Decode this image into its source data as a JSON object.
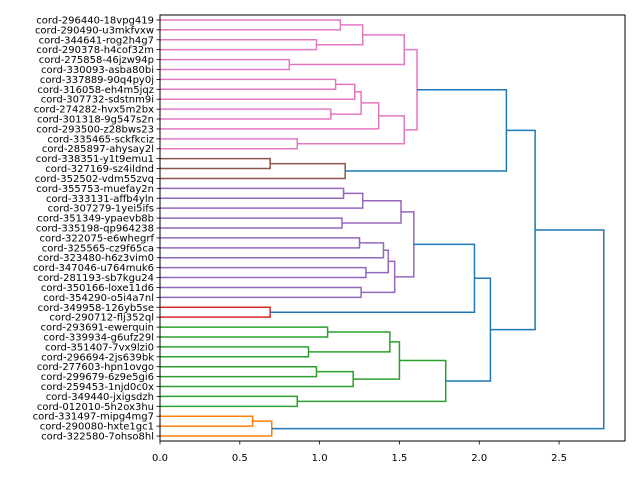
{
  "chart_data": {
    "type": "dendrogram",
    "orientation": "left",
    "title": "",
    "xlabel": "",
    "ylabel": "",
    "xlim": [
      0,
      2.913
    ],
    "xticks": [
      "0.0",
      "0.5",
      "1.0",
      "1.5",
      "2.0",
      "2.5"
    ],
    "xtick_values": [
      0,
      0.5,
      1.0,
      1.5,
      2.0,
      2.5
    ],
    "grid": false,
    "colors": {
      "pink": "#e377c2",
      "brown": "#8c564b",
      "purple": "#9467bd",
      "red": "#d62728",
      "green": "#2ca02c",
      "orange": "#ff7f0e",
      "blue": "#1f77b4"
    },
    "leaves": [
      "cord-296440-18vpg419",
      "cord-290490-u3mkfvxw",
      "cord-344641-rog2h4g7",
      "cord-290378-h4cof32m",
      "cord-275858-46jzw94p",
      "cord-330093-asba80bi",
      "cord-337889-90q4py0j",
      "cord-316058-eh4m5jqz",
      "cord-307732-sdstnm9i",
      "cord-274282-hvx5m2bx",
      "cord-301318-9g547s2n",
      "cord-293500-z28bws23",
      "cord-335465-sckfkciz",
      "cord-285897-ahysay2l",
      "cord-338351-y1t9emu1",
      "cord-327169-sz4ildnd",
      "cord-352502-vdm55zvq",
      "cord-355753-muefay2n",
      "cord-333131-affb4yln",
      "cord-307279-1yei5ifs",
      "cord-351349-ypaevb8b",
      "cord-335198-qp964238",
      "cord-322075-e6whegrf",
      "cord-325565-cz9f65ca",
      "cord-323480-h6z3vim0",
      "cord-347046-u764muk6",
      "cord-281193-sb7kgu24",
      "cord-350166-loxe11d6",
      "cord-354290-o5i4a7nl",
      "cord-349958-126yb5se",
      "cord-290712-flj352ql",
      "cord-293691-ewerquin",
      "cord-339934-g6ufz29l",
      "cord-351407-7vx9lzi0",
      "cord-296694-2js639bk",
      "cord-277603-hpn1ovgo",
      "cord-299679-6z9e5gi6",
      "cord-259453-1njd0c0x",
      "cord-349440-jxigsdzh",
      "cord-012010-5h2ox3hu",
      "cord-331497-mipg4mg7",
      "cord-290080-hxte1gc1",
      "cord-322580-7ohso8hl"
    ],
    "tree": {
      "h": 2.78,
      "c": "blue",
      "ch": [
        {
          "h": 2.35,
          "c": "blue",
          "ch": [
            {
              "h": 2.17,
              "c": "blue",
              "ch": [
                {
                  "h": 1.61,
                  "c": "pink",
                  "ch": [
                    {
                      "h": 1.53,
                      "c": "pink",
                      "ch": [
                        {
                          "h": 1.27,
                          "c": "pink",
                          "ch": [
                            {
                              "h": 1.13,
                              "c": "pink",
                              "ch": [
                                0,
                                1
                              ]
                            },
                            {
                              "h": 0.98,
                              "c": "pink",
                              "ch": [
                                2,
                                3
                              ]
                            }
                          ]
                        },
                        {
                          "h": 0.81,
                          "c": "pink",
                          "ch": [
                            4,
                            5
                          ]
                        }
                      ]
                    },
                    {
                      "h": 1.53,
                      "c": "pink",
                      "ch": [
                        {
                          "h": 1.37,
                          "c": "pink",
                          "ch": [
                            {
                              "h": 1.26,
                              "c": "pink",
                              "ch": [
                                {
                                  "h": 1.22,
                                  "c": "pink",
                                  "ch": [
                                    {
                                      "h": 1.1,
                                      "c": "pink",
                                      "ch": [
                                        6,
                                        7
                                      ]
                                    },
                                    8
                                  ]
                                },
                                {
                                  "h": 1.07,
                                  "c": "pink",
                                  "ch": [
                                    9,
                                    10
                                  ]
                                }
                              ]
                            },
                            11
                          ]
                        },
                        {
                          "h": 0.86,
                          "c": "pink",
                          "ch": [
                            12,
                            13
                          ]
                        }
                      ]
                    }
                  ]
                },
                {
                  "h": 1.16,
                  "c": "brown",
                  "ch": [
                    {
                      "h": 0.69,
                      "c": "brown",
                      "ch": [
                        14,
                        15
                      ]
                    },
                    16
                  ]
                }
              ]
            },
            {
              "h": 2.07,
              "c": "blue",
              "ch": [
                {
                  "h": 1.97,
                  "c": "blue",
                  "ch": [
                    {
                      "h": 1.59,
                      "c": "purple",
                      "ch": [
                        {
                          "h": 1.51,
                          "c": "purple",
                          "ch": [
                            {
                              "h": 1.27,
                              "c": "purple",
                              "ch": [
                                {
                                  "h": 1.15,
                                  "c": "purple",
                                  "ch": [
                                    17,
                                    18
                                  ]
                                },
                                19
                              ]
                            },
                            {
                              "h": 1.14,
                              "c": "purple",
                              "ch": [
                                20,
                                21
                              ]
                            }
                          ]
                        },
                        {
                          "h": 1.47,
                          "c": "purple",
                          "ch": [
                            {
                              "h": 1.43,
                              "c": "purple",
                              "ch": [
                                {
                                  "h": 1.4,
                                  "c": "purple",
                                  "ch": [
                                    {
                                      "h": 1.25,
                                      "c": "purple",
                                      "ch": [
                                        22,
                                        23
                                      ]
                                    },
                                    24
                                  ]
                                },
                                {
                                  "h": 1.29,
                                  "c": "purple",
                                  "ch": [
                                    25,
                                    26
                                  ]
                                }
                              ]
                            },
                            {
                              "h": 1.26,
                              "c": "purple",
                              "ch": [
                                27,
                                28
                              ]
                            }
                          ]
                        }
                      ]
                    },
                    {
                      "h": 0.69,
                      "c": "red",
                      "ch": [
                        29,
                        30
                      ]
                    }
                  ]
                },
                {
                  "h": 1.79,
                  "c": "green",
                  "ch": [
                    {
                      "h": 1.5,
                      "c": "green",
                      "ch": [
                        {
                          "h": 1.44,
                          "c": "green",
                          "ch": [
                            {
                              "h": 1.05,
                              "c": "green",
                              "ch": [
                                31,
                                32
                              ]
                            },
                            {
                              "h": 0.93,
                              "c": "green",
                              "ch": [
                                33,
                                34
                              ]
                            }
                          ]
                        },
                        {
                          "h": 1.21,
                          "c": "green",
                          "ch": [
                            {
                              "h": 0.98,
                              "c": "green",
                              "ch": [
                                35,
                                36
                              ]
                            },
                            37
                          ]
                        }
                      ]
                    },
                    {
                      "h": 0.86,
                      "c": "green",
                      "ch": [
                        38,
                        39
                      ]
                    }
                  ]
                }
              ]
            }
          ]
        },
        {
          "h": 0.7,
          "c": "orange",
          "ch": [
            {
              "h": 0.58,
              "c": "orange",
              "ch": [
                40,
                41
              ]
            },
            42
          ]
        }
      ]
    }
  }
}
